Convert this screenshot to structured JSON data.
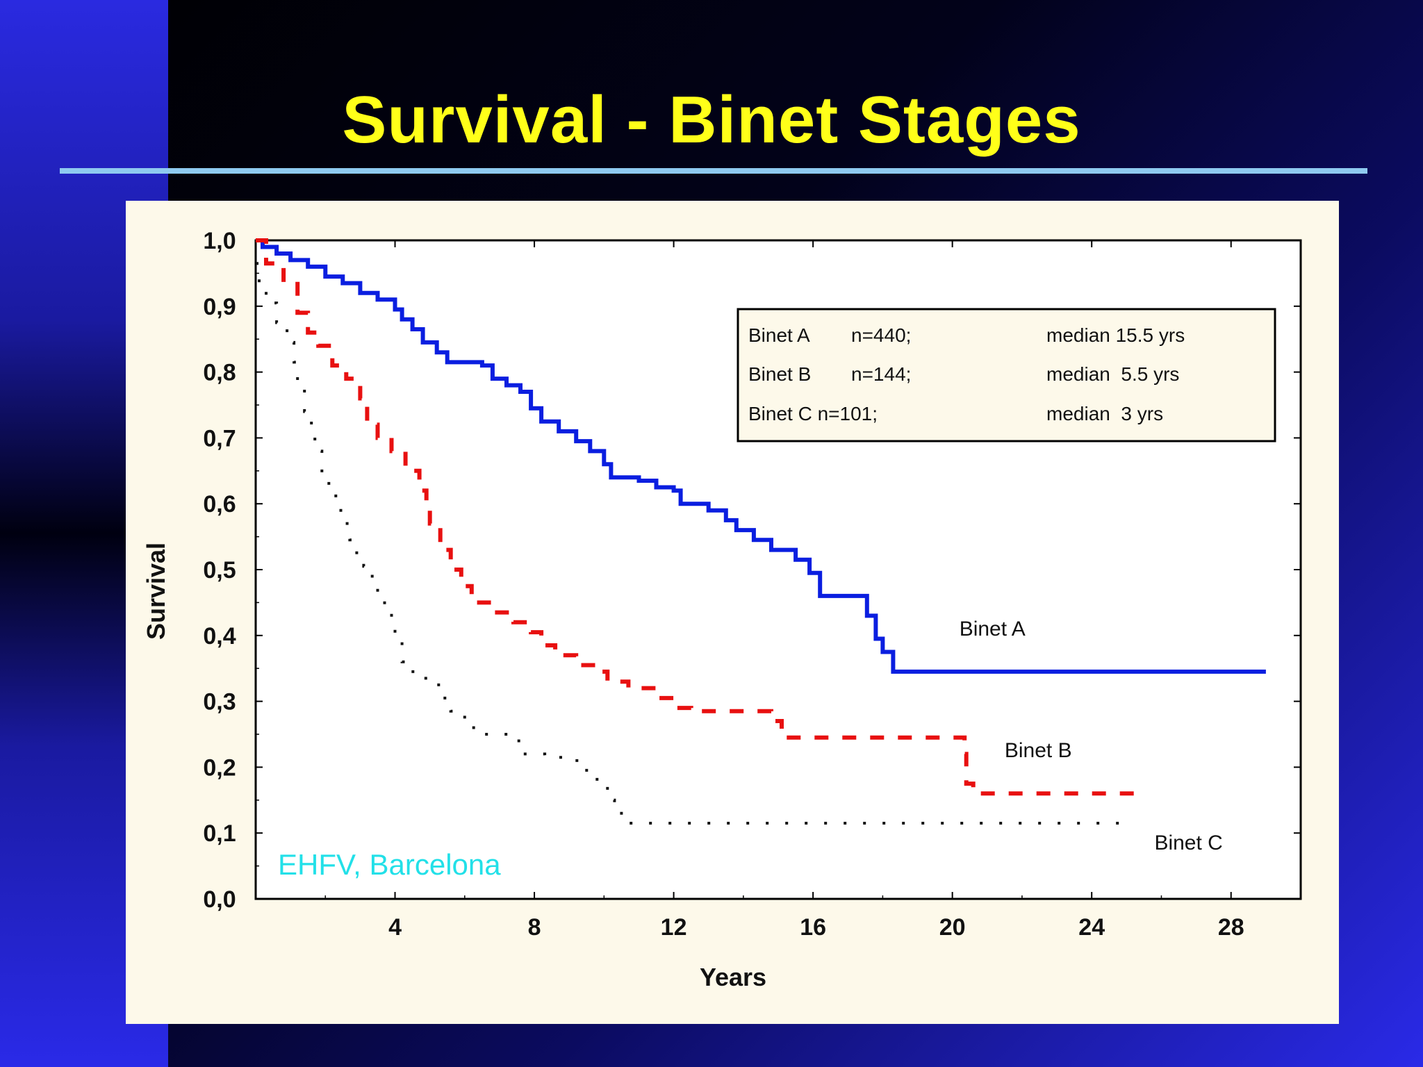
{
  "slide": {
    "title": "Survival - Binet Stages"
  },
  "chart_data": {
    "type": "line",
    "ylabel": "Survival",
    "xlabel": "Years",
    "xlim": [
      0,
      30
    ],
    "ylim": [
      0,
      1
    ],
    "x_ticks": [
      4,
      8,
      12,
      16,
      20,
      24,
      28
    ],
    "x_tick_labels": [
      "4",
      "8",
      "12",
      "16",
      "20",
      "24",
      "28"
    ],
    "y_ticks": [
      0,
      0.1,
      0.2,
      0.3,
      0.4,
      0.5,
      0.6,
      0.7,
      0.8,
      0.9,
      1.0
    ],
    "y_tick_labels": [
      "0,0",
      "0,1",
      "0,2",
      "0,3",
      "0,4",
      "0,5",
      "0,6",
      "0,7",
      "0,8",
      "0,9",
      "1,0"
    ],
    "grid": false,
    "legend": {
      "placement": "top-right",
      "rows": [
        {
          "name": "Binet A",
          "n": "n=440;",
          "median": "median 15.5 yrs"
        },
        {
          "name": "Binet B",
          "n": "n=144;",
          "median": "median  5.5 yrs"
        },
        {
          "name": "Binet C n=101;",
          "n": "",
          "median": "median  3 yrs"
        }
      ]
    },
    "annotation": "EHFV, Barcelona",
    "series": [
      {
        "name": "Binet A",
        "color": "#0a1ee0",
        "style": "solid",
        "label": "Binet A",
        "label_at": [
          20.2,
          0.4
        ],
        "points": [
          [
            0,
            1.0
          ],
          [
            0.2,
            0.99
          ],
          [
            0.6,
            0.98
          ],
          [
            1.0,
            0.97
          ],
          [
            1.5,
            0.96
          ],
          [
            2.0,
            0.945
          ],
          [
            2.5,
            0.935
          ],
          [
            3.0,
            0.92
          ],
          [
            3.5,
            0.91
          ],
          [
            4.0,
            0.895
          ],
          [
            4.2,
            0.88
          ],
          [
            4.5,
            0.865
          ],
          [
            4.8,
            0.845
          ],
          [
            5.2,
            0.83
          ],
          [
            5.5,
            0.815
          ],
          [
            6.0,
            0.815
          ],
          [
            6.5,
            0.81
          ],
          [
            6.8,
            0.79
          ],
          [
            7.2,
            0.78
          ],
          [
            7.6,
            0.77
          ],
          [
            7.9,
            0.745
          ],
          [
            8.2,
            0.725
          ],
          [
            8.7,
            0.71
          ],
          [
            9.2,
            0.695
          ],
          [
            9.6,
            0.68
          ],
          [
            10.0,
            0.66
          ],
          [
            10.2,
            0.64
          ],
          [
            11.0,
            0.635
          ],
          [
            11.5,
            0.625
          ],
          [
            12.0,
            0.62
          ],
          [
            12.2,
            0.6
          ],
          [
            13.0,
            0.59
          ],
          [
            13.5,
            0.575
          ],
          [
            13.8,
            0.56
          ],
          [
            14.3,
            0.545
          ],
          [
            14.8,
            0.53
          ],
          [
            15.5,
            0.515
          ],
          [
            15.9,
            0.495
          ],
          [
            16.2,
            0.46
          ],
          [
            17.5,
            0.46
          ],
          [
            17.55,
            0.43
          ],
          [
            17.8,
            0.395
          ],
          [
            18.0,
            0.375
          ],
          [
            18.3,
            0.345
          ],
          [
            29.0,
            0.345
          ]
        ]
      },
      {
        "name": "Binet B",
        "color": "#e81010",
        "style": "dashed",
        "label": "Binet B",
        "label_at": [
          21.5,
          0.215
        ],
        "points": [
          [
            0,
            1.0
          ],
          [
            0.3,
            0.965
          ],
          [
            0.8,
            0.94
          ],
          [
            1.2,
            0.89
          ],
          [
            1.5,
            0.86
          ],
          [
            1.8,
            0.84
          ],
          [
            2.2,
            0.81
          ],
          [
            2.6,
            0.79
          ],
          [
            3.0,
            0.76
          ],
          [
            3.2,
            0.72
          ],
          [
            3.5,
            0.7
          ],
          [
            3.9,
            0.68
          ],
          [
            4.3,
            0.65
          ],
          [
            4.7,
            0.62
          ],
          [
            4.9,
            0.6
          ],
          [
            5.0,
            0.57
          ],
          [
            5.3,
            0.53
          ],
          [
            5.6,
            0.5
          ],
          [
            5.9,
            0.475
          ],
          [
            6.2,
            0.45
          ],
          [
            6.8,
            0.435
          ],
          [
            7.4,
            0.42
          ],
          [
            7.9,
            0.405
          ],
          [
            8.2,
            0.385
          ],
          [
            8.6,
            0.37
          ],
          [
            9.2,
            0.355
          ],
          [
            9.8,
            0.345
          ],
          [
            10.1,
            0.33
          ],
          [
            10.7,
            0.32
          ],
          [
            11.5,
            0.305
          ],
          [
            12.0,
            0.29
          ],
          [
            12.5,
            0.285
          ],
          [
            14.5,
            0.285
          ],
          [
            14.8,
            0.27
          ],
          [
            15.1,
            0.245
          ],
          [
            20.3,
            0.245
          ],
          [
            20.35,
            0.22
          ],
          [
            20.4,
            0.175
          ],
          [
            20.6,
            0.16
          ],
          [
            25.5,
            0.16
          ]
        ]
      },
      {
        "name": "Binet C",
        "color": "#111111",
        "style": "dotted",
        "label": "Binet C",
        "label_at": [
          25.8,
          0.075
        ],
        "points": [
          [
            0,
            0.965
          ],
          [
            0.1,
            0.93
          ],
          [
            0.3,
            0.905
          ],
          [
            0.6,
            0.875
          ],
          [
            0.9,
            0.845
          ],
          [
            1.1,
            0.815
          ],
          [
            1.2,
            0.78
          ],
          [
            1.4,
            0.74
          ],
          [
            1.6,
            0.71
          ],
          [
            1.7,
            0.68
          ],
          [
            1.9,
            0.645
          ],
          [
            2.1,
            0.615
          ],
          [
            2.3,
            0.59
          ],
          [
            2.5,
            0.57
          ],
          [
            2.7,
            0.545
          ],
          [
            2.9,
            0.52
          ],
          [
            3.1,
            0.505
          ],
          [
            3.3,
            0.49
          ],
          [
            3.5,
            0.465
          ],
          [
            3.7,
            0.44
          ],
          [
            3.9,
            0.425
          ],
          [
            4.0,
            0.395
          ],
          [
            4.2,
            0.36
          ],
          [
            4.4,
            0.345
          ],
          [
            4.7,
            0.335
          ],
          [
            5.0,
            0.325
          ],
          [
            5.3,
            0.305
          ],
          [
            5.6,
            0.285
          ],
          [
            6.0,
            0.26
          ],
          [
            6.4,
            0.25
          ],
          [
            7.0,
            0.25
          ],
          [
            7.5,
            0.24
          ],
          [
            7.6,
            0.22
          ],
          [
            8.3,
            0.215
          ],
          [
            9.0,
            0.21
          ],
          [
            9.5,
            0.19
          ],
          [
            9.8,
            0.17
          ],
          [
            10.1,
            0.15
          ],
          [
            10.3,
            0.13
          ],
          [
            10.6,
            0.115
          ],
          [
            24.8,
            0.115
          ]
        ]
      }
    ]
  }
}
